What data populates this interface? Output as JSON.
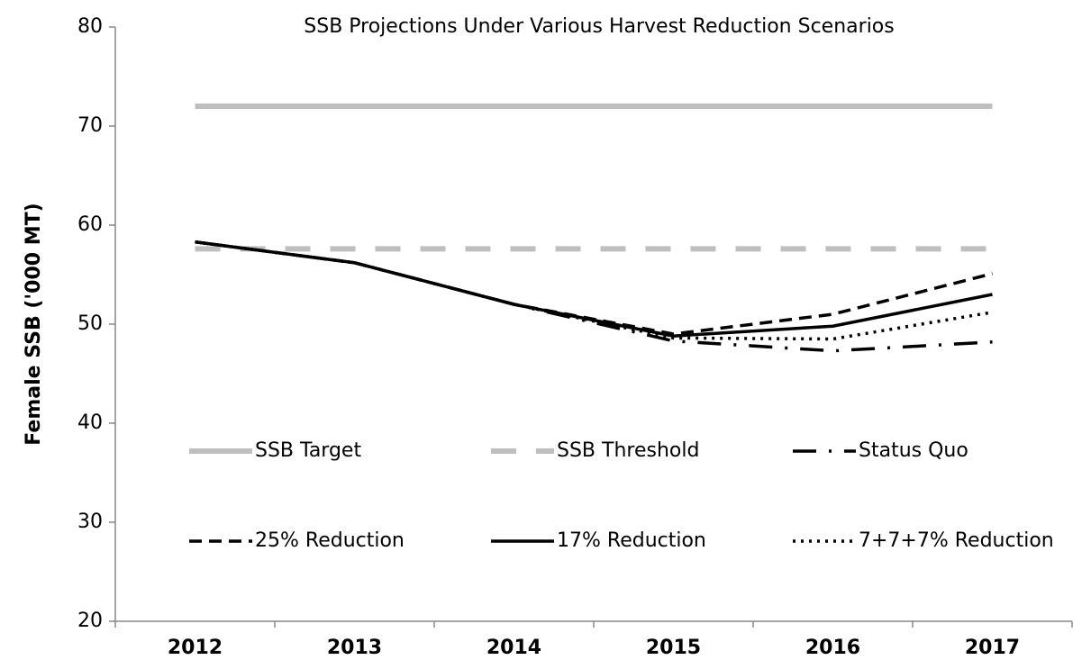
{
  "chart_data": {
    "type": "line",
    "title": "SSB Projections Under Various Harvest Reduction Scenarios",
    "y_label": "Female SSB ('000 MT)",
    "categories": [
      "2012",
      "2013",
      "2014",
      "2015",
      "2016",
      "2017"
    ],
    "ylim": [
      20,
      80
    ],
    "yticks": [
      20,
      30,
      40,
      50,
      60,
      70,
      80
    ],
    "legend": "inside-lower",
    "series": [
      {
        "name": "SSB Target",
        "color": "#bfbfbf",
        "dash": "solid",
        "values": [
          72,
          72,
          72,
          72,
          72,
          72
        ]
      },
      {
        "name": "SSB Threshold",
        "color": "#bfbfbf",
        "dash": "dash",
        "values": [
          57.6,
          57.6,
          57.6,
          57.6,
          57.6,
          57.6
        ]
      },
      {
        "name": "Status Quo",
        "color": "#000000",
        "dash": "longdash-dot",
        "values": [
          58.3,
          56.2,
          52.0,
          48.3,
          47.3,
          48.2
        ]
      },
      {
        "name": "25% Reduction",
        "color": "#000000",
        "dash": "dash",
        "values": [
          58.3,
          56.2,
          52.0,
          49.0,
          51.0,
          55.1
        ]
      },
      {
        "name": "17% Reduction",
        "color": "#000000",
        "dash": "solid",
        "values": [
          58.3,
          56.2,
          52.0,
          48.8,
          49.8,
          53.0
        ]
      },
      {
        "name": "7+7+7% Reduction",
        "color": "#000000",
        "dash": "dot",
        "values": [
          58.3,
          56.2,
          52.0,
          48.6,
          48.5,
          51.2
        ]
      }
    ]
  }
}
